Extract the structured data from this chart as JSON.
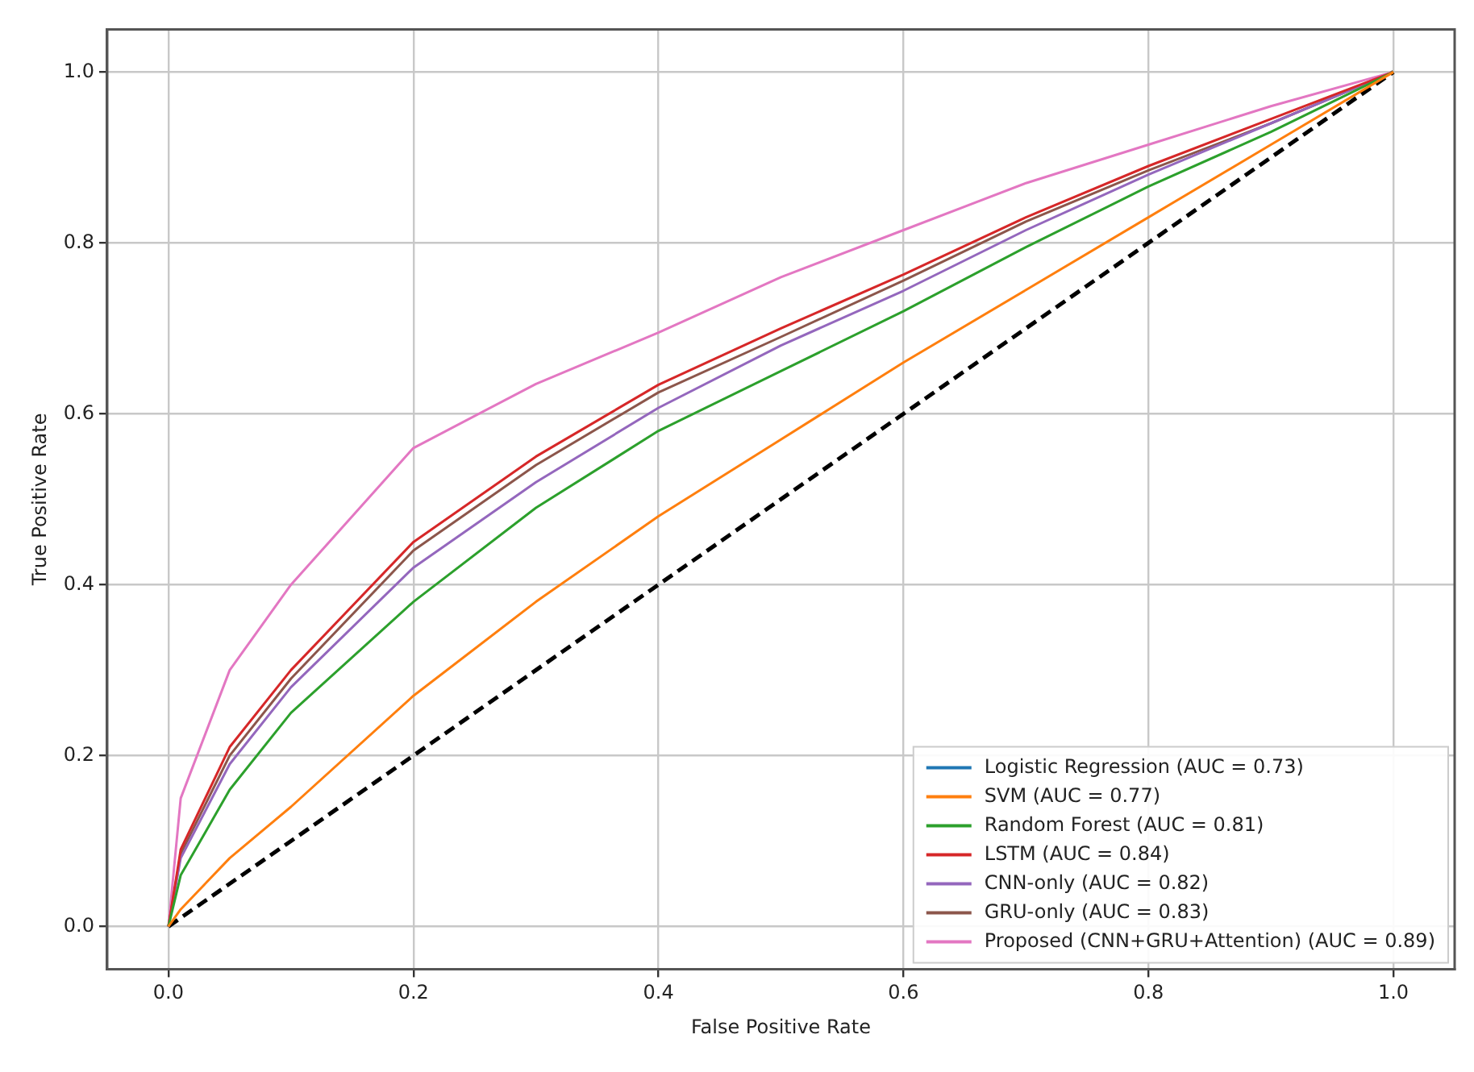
{
  "chart_data": {
    "type": "line",
    "xlabel": "False Positive Rate",
    "ylabel": "True Positive Rate",
    "x": [
      0,
      0.01,
      0.05,
      0.1,
      0.2,
      0.3,
      0.4,
      0.5,
      0.6,
      0.7,
      0.8,
      0.9,
      1
    ],
    "series": [
      {
        "name": "Logistic Regression (AUC = 0.73)",
        "color": "#1f77b4",
        "values": [
          null,
          null,
          null,
          null,
          null,
          null,
          null,
          null,
          null,
          null,
          null,
          null,
          null
        ]
      },
      {
        "name": "SVM (AUC = 0.77)",
        "color": "#ff7f0e",
        "values": [
          0,
          0.02,
          0.08,
          0.14,
          0.27,
          0.38,
          0.48,
          0.57,
          0.66,
          0.745,
          0.83,
          0.915,
          1
        ]
      },
      {
        "name": "Random Forest (AUC = 0.81)",
        "color": "#2ca02c",
        "values": [
          0,
          0.06,
          0.16,
          0.25,
          0.38,
          0.49,
          0.58,
          0.65,
          0.72,
          0.795,
          0.866,
          0.93,
          1
        ]
      },
      {
        "name": "LSTM (AUC = 0.84)",
        "color": "#d62728",
        "values": [
          0,
          0.09,
          0.21,
          0.3,
          0.45,
          0.55,
          0.634,
          0.7,
          0.763,
          0.83,
          0.89,
          0.945,
          1
        ]
      },
      {
        "name": "CNN-only (AUC = 0.82)",
        "color": "#9467bd",
        "values": [
          0,
          0.08,
          0.19,
          0.28,
          0.42,
          0.52,
          0.607,
          0.68,
          0.744,
          0.815,
          0.88,
          0.94,
          1
        ]
      },
      {
        "name": "GRU-only (AUC = 0.83)",
        "color": "#8c564b",
        "values": [
          0,
          0.085,
          0.2,
          0.29,
          0.44,
          0.54,
          0.625,
          0.69,
          0.756,
          0.825,
          0.885,
          0.94,
          1
        ]
      },
      {
        "name": "Proposed (CNN+GRU+Attention) (AUC = 0.89)",
        "color": "#e377c2",
        "values": [
          0,
          0.15,
          0.3,
          0.4,
          0.56,
          0.635,
          0.695,
          0.76,
          0.815,
          0.87,
          0.915,
          0.96,
          1
        ]
      },
      {
        "color": "#000000",
        "x": [
          0,
          1
        ],
        "values": [
          0,
          1
        ],
        "line_style": "dashed"
      }
    ],
    "xlim": [
      -0.05,
      1.05
    ],
    "ylim": [
      -0.05,
      1.05
    ],
    "xticks": [
      {
        "value": 0,
        "label": "0.0"
      },
      {
        "value": 0.2,
        "label": "0.2"
      },
      {
        "value": 0.4,
        "label": "0.4"
      },
      {
        "value": 0.6,
        "label": "0.6"
      },
      {
        "value": 0.8,
        "label": "0.8"
      },
      {
        "value": 1,
        "label": "1.0"
      }
    ],
    "yticks": [
      {
        "value": 0,
        "label": "0.0"
      },
      {
        "value": 0.2,
        "label": "0.2"
      },
      {
        "value": 0.4,
        "label": "0.4"
      },
      {
        "value": 0.6,
        "label": "0.6"
      },
      {
        "value": 0.8,
        "label": "0.8"
      },
      {
        "value": 1,
        "label": "1.0"
      }
    ],
    "grid": true,
    "legend": "bottom right",
    "marker": "none"
  }
}
